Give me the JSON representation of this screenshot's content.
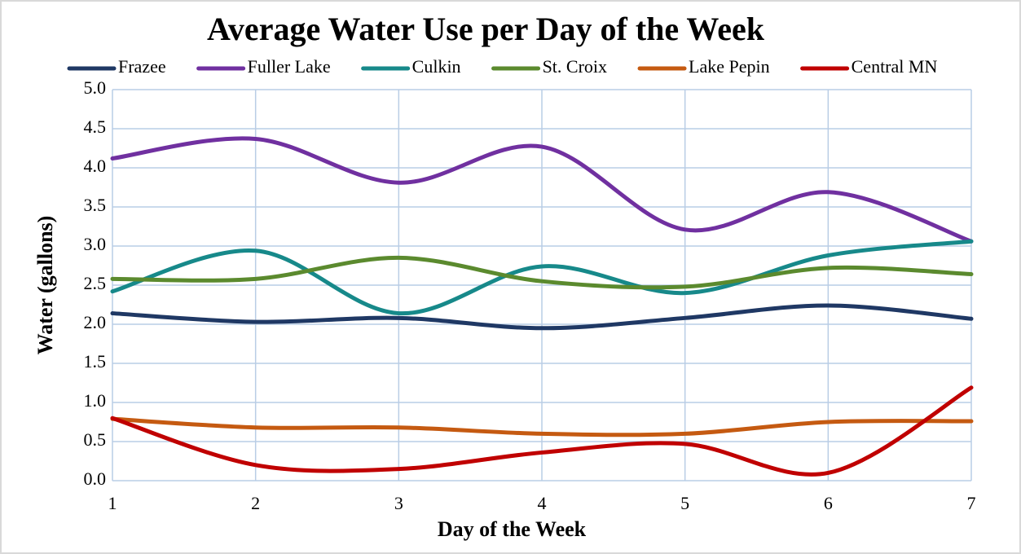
{
  "chart_data": {
    "type": "line",
    "title": "Average Water Use per Day of the Week",
    "xlabel": "Day of the Week",
    "ylabel": "Water (gallons)",
    "x": [
      1,
      2,
      3,
      4,
      5,
      6,
      7
    ],
    "xlim": [
      1,
      7
    ],
    "xticks": [
      1,
      2,
      3,
      4,
      5,
      6,
      7
    ],
    "ylim": [
      0,
      5
    ],
    "yticks": [
      {
        "value": 0,
        "label": "0.0"
      },
      0.5,
      {
        "value": 1,
        "label": "1.0"
      },
      1.5,
      {
        "value": 2,
        "label": "2.0"
      },
      2.5,
      {
        "value": 3,
        "label": "3.0"
      },
      3.5,
      {
        "value": 4,
        "label": "4.0"
      },
      4.5,
      {
        "value": 5,
        "label": "5.0"
      }
    ],
    "grid": true,
    "smooth": true,
    "legend": "top",
    "series": [
      {
        "name": "Frazee",
        "color": "#1f3864",
        "values": [
          2.14,
          2.03,
          2.08,
          1.95,
          2.08,
          2.24,
          2.07
        ]
      },
      {
        "name": "Fuller Lake",
        "color": "#7030a0",
        "values": [
          4.12,
          4.37,
          3.81,
          4.27,
          3.21,
          3.69,
          3.06
        ]
      },
      {
        "name": "Culkin",
        "color": "#17898a",
        "values": [
          2.42,
          2.94,
          2.14,
          2.74,
          2.4,
          2.88,
          3.06
        ]
      },
      {
        "name": "St. Croix",
        "color": "#5b8a2e",
        "values": [
          2.58,
          2.58,
          2.85,
          2.55,
          2.48,
          2.72,
          2.64
        ]
      },
      {
        "name": "Lake Pepin",
        "color": "#c55a11",
        "values": [
          0.79,
          0.68,
          0.68,
          0.6,
          0.6,
          0.75,
          0.76
        ]
      },
      {
        "name": "Central MN",
        "color": "#c00000",
        "values": [
          0.8,
          0.2,
          0.15,
          0.36,
          0.47,
          0.1,
          1.19
        ]
      }
    ]
  }
}
